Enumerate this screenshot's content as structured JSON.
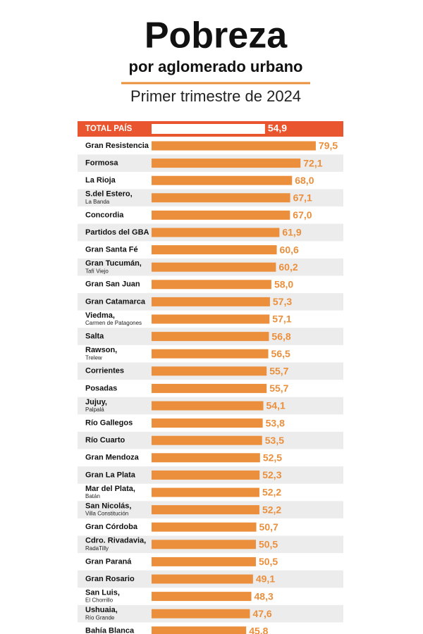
{
  "chart_data": {
    "type": "bar",
    "title": "Pobreza",
    "subtitle": "por aglomerado urbano",
    "period": "Primer trimestre de 2024",
    "total": {
      "category": "TOTAL PAÍS",
      "value": 54.9,
      "value_label": "54,9",
      "color": "#e8552e"
    },
    "categories": [
      "Gran Resistencia",
      "Formosa",
      "La Rioja",
      "S.del Estero,",
      "Concordia",
      "Partidos del GBA",
      "Gran Santa Fé",
      "Gran Tucumán,",
      "Gran San Juan",
      "Gran Catamarca",
      "Viedma,",
      "Salta",
      "Rawson,",
      "Corrientes",
      "Posadas",
      "Jujuy,",
      "Río Gallegos",
      "Río Cuarto",
      "Gran Mendoza",
      "Gran La Plata",
      "Mar del Plata,",
      "San Nicolás,",
      "Gran Córdoba",
      "Cdro. Rivadavia,",
      "Gran Paraná",
      "Gran Rosario",
      "San Luis,",
      "Ushuaia,",
      "Bahía Blanca"
    ],
    "sublabels": [
      null,
      null,
      null,
      "La Banda",
      null,
      null,
      null,
      "Tafí Viejo",
      null,
      null,
      "Carmen de Patagones",
      null,
      "Trelew",
      null,
      null,
      "Palpalá",
      null,
      null,
      null,
      null,
      "Batán",
      "Villa Constitución",
      null,
      "RadaTilly",
      null,
      null,
      "El Chorrillo",
      "Río Grande",
      null
    ],
    "values": [
      79.5,
      72.1,
      68.0,
      67.1,
      67.0,
      61.9,
      60.6,
      60.2,
      58.0,
      57.3,
      57.1,
      56.8,
      56.5,
      55.7,
      55.7,
      54.1,
      53.8,
      53.5,
      52.5,
      52.3,
      52.2,
      52.2,
      50.7,
      50.5,
      50.5,
      49.1,
      48.3,
      47.6,
      45.8
    ],
    "value_labels": [
      "79,5",
      "72,1",
      "68,0",
      "67,1",
      "67,0",
      "61,9",
      "60,6",
      "60,2",
      "58,0",
      "57,3",
      "57,1",
      "56,8",
      "56,5",
      "55,7",
      "55,7",
      "54,1",
      "53,8",
      "53,5",
      "52,5",
      "52,3",
      "52,2",
      "52,2",
      "50,7",
      "50,5",
      "50,5",
      "49,1",
      "48,3",
      "47,6",
      "45,8"
    ],
    "color": "#eb8f3c"
  }
}
